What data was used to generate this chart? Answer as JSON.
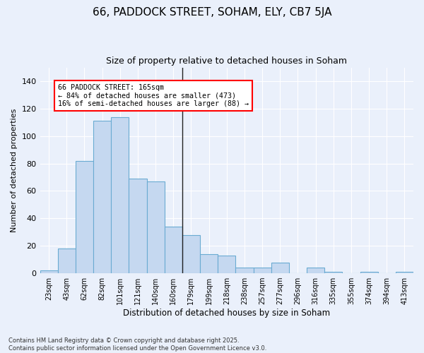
{
  "title_line1": "66, PADDOCK STREET, SOHAM, ELY, CB7 5JA",
  "title_line2": "Size of property relative to detached houses in Soham",
  "xlabel": "Distribution of detached houses by size in Soham",
  "ylabel": "Number of detached properties",
  "categories": [
    "23sqm",
    "43sqm",
    "62sqm",
    "82sqm",
    "101sqm",
    "121sqm",
    "140sqm",
    "160sqm",
    "179sqm",
    "199sqm",
    "218sqm",
    "238sqm",
    "257sqm",
    "277sqm",
    "296sqm",
    "316sqm",
    "335sqm",
    "355sqm",
    "374sqm",
    "394sqm",
    "413sqm"
  ],
  "values": [
    2,
    18,
    82,
    111,
    114,
    69,
    67,
    34,
    28,
    14,
    13,
    4,
    4,
    8,
    0,
    4,
    1,
    0,
    1,
    0,
    1
  ],
  "bar_color": "#c5d8f0",
  "bar_edge_color": "#6aabd2",
  "annotation_text": "66 PADDOCK STREET: 165sqm\n← 84% of detached houses are smaller (473)\n16% of semi-detached houses are larger (88) →",
  "ylim": [
    0,
    150
  ],
  "yticks": [
    0,
    20,
    40,
    60,
    80,
    100,
    120,
    140
  ],
  "bg_color": "#eaf0fb",
  "grid_color": "#ffffff",
  "footer": "Contains HM Land Registry data © Crown copyright and database right 2025.\nContains public sector information licensed under the Open Government Licence v3.0."
}
